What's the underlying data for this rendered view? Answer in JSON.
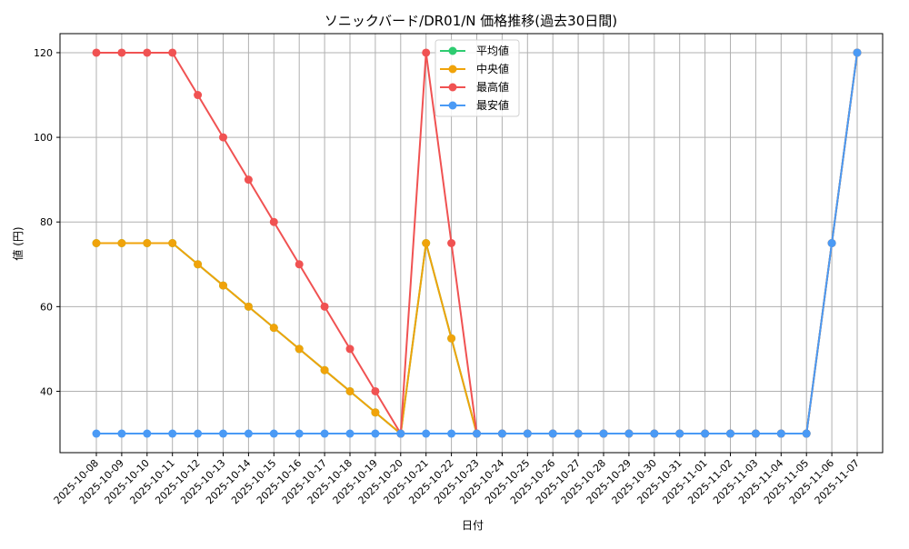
{
  "chart_data": {
    "type": "line",
    "title": "ソニックバード/DR01/N 価格推移(過去30日間)",
    "xlabel": "日付",
    "ylabel": "値 (円)",
    "ylim": [
      25.5,
      124.5
    ],
    "yticks": [
      40,
      60,
      80,
      100,
      120
    ],
    "grid": true,
    "legend_position": "upper center",
    "x": [
      "2025-10-08",
      "2025-10-09",
      "2025-10-10",
      "2025-10-11",
      "2025-10-12",
      "2025-10-13",
      "2025-10-14",
      "2025-10-15",
      "2025-10-16",
      "2025-10-17",
      "2025-10-18",
      "2025-10-19",
      "2025-10-20",
      "2025-10-21",
      "2025-10-22",
      "2025-10-23",
      "2025-10-24",
      "2025-10-25",
      "2025-10-26",
      "2025-10-27",
      "2025-10-28",
      "2025-10-29",
      "2025-10-30",
      "2025-10-31",
      "2025-11-01",
      "2025-11-02",
      "2025-11-03",
      "2025-11-04",
      "2025-11-05",
      "2025-11-06",
      "2025-11-07"
    ],
    "series": [
      {
        "name": "平均値",
        "color": "#2ecc71",
        "values": [
          75,
          75,
          75,
          75,
          70,
          65,
          60,
          55,
          50,
          45,
          40,
          35,
          30,
          75,
          52.5,
          30,
          30,
          30,
          30,
          30,
          30,
          30,
          30,
          30,
          30,
          30,
          30,
          30,
          30,
          75,
          120
        ]
      },
      {
        "name": "中央値",
        "color": "#f0a30a",
        "values": [
          75,
          75,
          75,
          75,
          70,
          65,
          60,
          55,
          50,
          45,
          40,
          35,
          30,
          75,
          52.5,
          30,
          30,
          30,
          30,
          30,
          30,
          30,
          30,
          30,
          30,
          30,
          30,
          30,
          30,
          75,
          120
        ]
      },
      {
        "name": "最高値",
        "color": "#f05252",
        "values": [
          120,
          120,
          120,
          120,
          110,
          100,
          90,
          80,
          70,
          60,
          50,
          40,
          30,
          120,
          75,
          30,
          30,
          30,
          30,
          30,
          30,
          30,
          30,
          30,
          30,
          30,
          30,
          30,
          30,
          75,
          120
        ]
      },
      {
        "name": "最安値",
        "color": "#4a9af5",
        "values": [
          30,
          30,
          30,
          30,
          30,
          30,
          30,
          30,
          30,
          30,
          30,
          30,
          30,
          30,
          30,
          30,
          30,
          30,
          30,
          30,
          30,
          30,
          30,
          30,
          30,
          30,
          30,
          30,
          30,
          75,
          120
        ]
      }
    ]
  }
}
